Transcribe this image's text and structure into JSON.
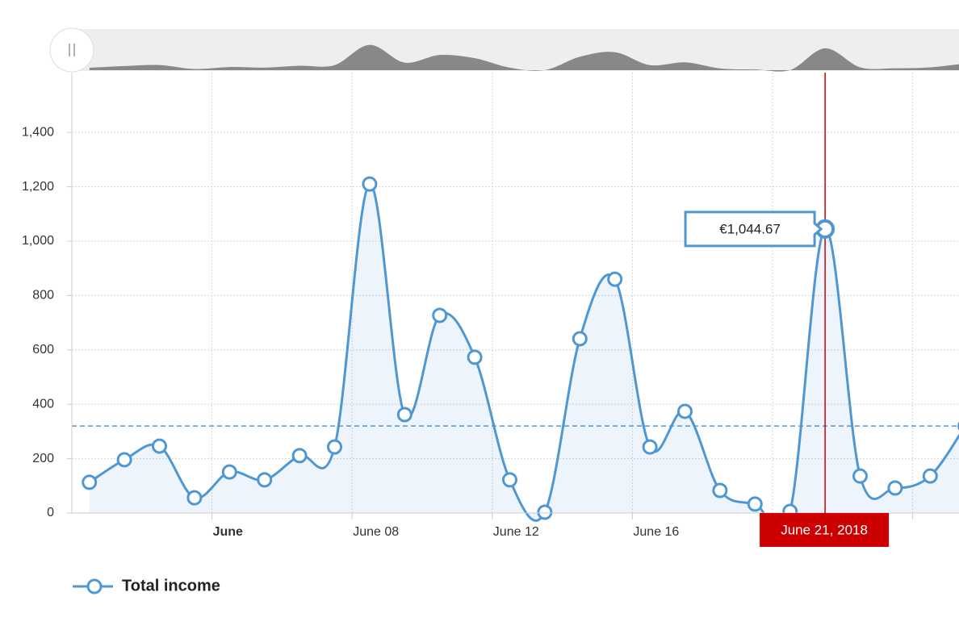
{
  "chart_data": {
    "type": "line",
    "x": [
      "2018-05-31",
      "2018-06-01",
      "2018-06-02",
      "2018-06-03",
      "2018-06-04",
      "2018-06-05",
      "2018-06-06",
      "2018-06-07",
      "2018-06-08",
      "2018-06-09",
      "2018-06-10",
      "2018-06-11",
      "2018-06-12",
      "2018-06-13",
      "2018-06-14",
      "2018-06-15",
      "2018-06-16",
      "2018-06-17",
      "2018-06-18",
      "2018-06-19",
      "2018-06-20",
      "2018-06-21",
      "2018-06-22",
      "2018-06-23",
      "2018-06-24",
      "2018-06-25"
    ],
    "series": [
      {
        "name": "Total income",
        "color": "#4f97d3",
        "values": [
          113,
          196,
          246,
          56,
          151,
          122,
          211,
          243,
          1210,
          362,
          727,
          573,
          122,
          3,
          641,
          860,
          243,
          374,
          83,
          33,
          6,
          1044.67,
          136,
          92,
          136,
          320
        ],
        "value_labels": [
          null,
          null,
          null,
          null,
          null,
          null,
          null,
          null,
          null,
          null,
          null,
          null,
          null,
          null,
          null,
          null,
          null,
          null,
          null,
          null,
          null,
          "€1,044.67",
          null,
          null,
          null,
          null
        ]
      }
    ],
    "xlim": [
      "2018-05-31",
      "2018-06-26"
    ],
    "xticks": [
      {
        "value": "2018-06-04",
        "label": "June"
      },
      {
        "value": "2018-06-08",
        "label": "June 08"
      },
      {
        "value": "2018-06-12",
        "label": "June 12"
      },
      {
        "value": "2018-06-16",
        "label": "June 16"
      },
      {
        "value": "2018-06-20",
        "label": null
      },
      {
        "value": "2018-06-24",
        "label": null
      }
    ],
    "ylim": [
      0,
      1620
    ],
    "yticks": [
      0,
      200,
      400,
      600,
      800,
      {
        "value": 1000,
        "label": "1,000"
      },
      {
        "value": 1200,
        "label": "1,200"
      },
      {
        "value": 1400,
        "label": "1,400"
      }
    ],
    "average_line": 320,
    "cursor": {
      "index": 21,
      "label": "June 21, 2018"
    },
    "grid": true,
    "legend": "bottom-left"
  }
}
